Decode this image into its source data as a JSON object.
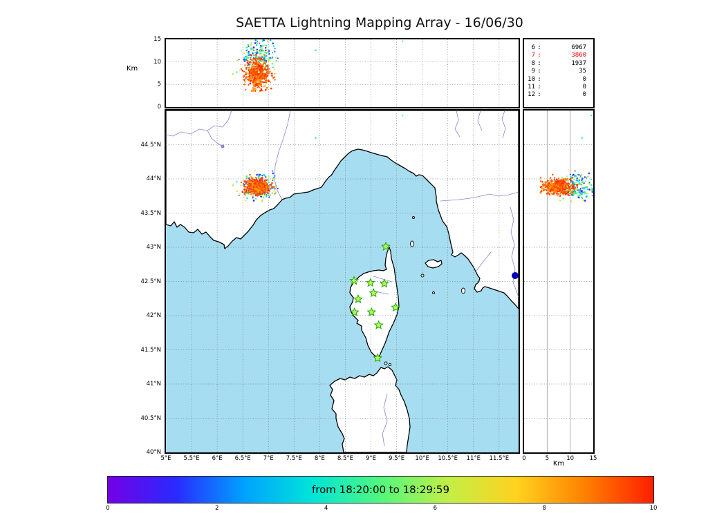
{
  "title": "SAETTA Lightning Mapping Array - 16/06/30",
  "chart_data": [
    {
      "id": "lon_alt_panel",
      "type": "scatter",
      "ylabel": "Km",
      "y_range_km": [
        0,
        15
      ],
      "ytick_values": [
        0,
        5,
        10,
        15
      ],
      "ytick_labels": [
        "0",
        "5",
        "10",
        "15"
      ],
      "x_range_deg_e": [
        5,
        11.88
      ],
      "description": "VHF source altitude (km) vs longitude; dense storm column between 6.5°E and 7°E from about 4 to 14 km"
    },
    {
      "id": "station_source_counts",
      "type": "table",
      "rows": [
        {
          "station": "6",
          "count": "6967",
          "highlight": false
        },
        {
          "station": "7",
          "count": "3860",
          "highlight": true
        },
        {
          "station": "8",
          "count": "1937",
          "highlight": false
        },
        {
          "station": "9",
          "count": "35",
          "highlight": false
        },
        {
          "station": "10",
          "count": "0",
          "highlight": false
        },
        {
          "station": "11",
          "count": "0",
          "highlight": false
        },
        {
          "station": "12",
          "count": "0",
          "highlight": false
        }
      ]
    },
    {
      "id": "map_panel",
      "type": "scatter",
      "lon_range_deg_e": [
        5,
        11.88
      ],
      "lat_range_deg_n": [
        40,
        45
      ],
      "lon_tick_values": [
        5,
        5.5,
        6,
        6.5,
        7,
        7.5,
        8,
        8.5,
        9,
        9.5,
        10,
        10.5,
        11,
        11.5
      ],
      "lon_tick_labels": [
        "5°E",
        "5.5°E",
        "6°E",
        "6.5°E",
        "7°E",
        "7.5°E",
        "8°E",
        "8.5°E",
        "9°E",
        "9.5°E",
        "10°E",
        "10.5°E",
        "11°E",
        "11.5°E"
      ],
      "lat_tick_values": [
        44.5,
        44,
        43.5,
        43,
        42.5,
        42,
        41.5,
        41,
        40.5,
        40
      ],
      "lat_tick_labels": [
        "44.5°N",
        "44°N",
        "43.5°N",
        "43°N",
        "42.5°N",
        "42°N",
        "41.5°N",
        "41°N",
        "40.5°N",
        "40°N"
      ],
      "grid": "dashed",
      "station_markers_lon_lat": [
        [
          9.29,
          43.01
        ],
        [
          8.67,
          42.51
        ],
        [
          8.99,
          42.48
        ],
        [
          9.26,
          42.47
        ],
        [
          9.05,
          42.33
        ],
        [
          8.75,
          42.24
        ],
        [
          9.48,
          42.12
        ],
        [
          8.68,
          42.05
        ],
        [
          9.01,
          42.05
        ],
        [
          9.15,
          41.86
        ],
        [
          9.13,
          41.38
        ]
      ],
      "storm_cell_note": "dense lightning cluster centered near 6.8°E, 43.9°N over inland Provence"
    },
    {
      "id": "alt_lat_panel",
      "type": "scatter",
      "xlabel": "Km",
      "x_range_km": [
        0,
        15
      ],
      "xtick_values": [
        0,
        5,
        10,
        15
      ],
      "xtick_labels": [
        "0",
        "5",
        "10",
        "15"
      ]
    },
    {
      "id": "time_colorbar",
      "type": "colorbar",
      "label": "from 18:20:00 to 18:29:59",
      "range": [
        0,
        10
      ],
      "tick_values": [
        0,
        2,
        4,
        6,
        8,
        10
      ],
      "tick_labels": [
        "0",
        "2",
        "4",
        "6",
        "8",
        "10"
      ],
      "colormap_stops": [
        "#7300e6",
        "#2a2aff",
        "#00a2ff",
        "#00e5d8",
        "#52f77d",
        "#c3ef45",
        "#ffd21e",
        "#ff8000",
        "#ff1e00"
      ]
    }
  ],
  "storm_model": {
    "main_cluster": {
      "n": 520,
      "lon_mu": 6.78,
      "lon_sd": 0.11,
      "lat_mu": 43.88,
      "lat_sd": 0.055,
      "alt_mu_km": 7.4,
      "alt_sd_km": 1.7,
      "alt_min_km": 3.6,
      "alt_max_km": 11.5,
      "time_frac_range": [
        0.8,
        1.0
      ]
    },
    "high_scatter": {
      "n": 210,
      "lon_mu": 6.8,
      "lon_sd": 0.17,
      "lat_mu": 43.88,
      "lat_sd": 0.09,
      "alt_mu_km": 11.2,
      "alt_sd_km": 1.8,
      "alt_min_km": 4.5,
      "alt_max_km": 14.8,
      "time_frac_range": [
        0.04,
        0.74
      ]
    },
    "outliers": [
      {
        "lon": 9.62,
        "lat": 44.93,
        "alt": 14.6,
        "t": 0.35
      },
      {
        "lon": 7.92,
        "lat": 44.6,
        "alt": 12.6,
        "t": 0.5
      }
    ]
  },
  "colors": {
    "sea": "#a6ddf0",
    "land": "#ffffff",
    "coast": "#000000",
    "river": "#8585d0",
    "grid": "#7a7a7a",
    "star_fill": "#b8f566",
    "star_stroke": "#1faa00",
    "lake_dot": "#0000b8",
    "highlight_text": "#ff0000"
  }
}
